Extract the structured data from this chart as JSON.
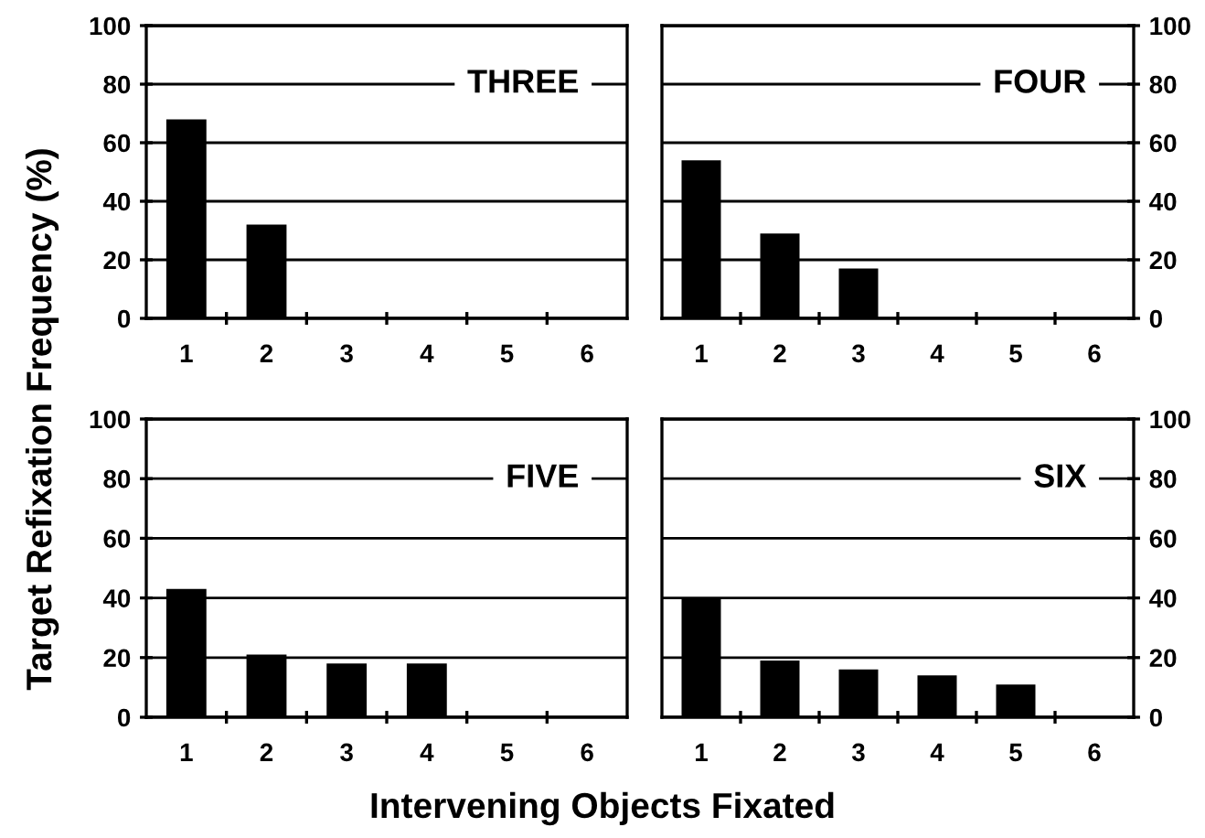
{
  "chart_data": [
    {
      "type": "bar",
      "title": "THREE",
      "ylabel": "Target Refixation Frequency (%)",
      "categories": [
        "1",
        "2",
        "3",
        "4",
        "5",
        "6"
      ],
      "values": [
        68,
        32,
        null,
        null,
        null,
        null
      ],
      "color": "#000000",
      "ylim": [
        0,
        100
      ],
      "yticks": [
        0,
        20,
        40,
        60,
        80,
        100
      ],
      "grid": "y"
    },
    {
      "type": "bar",
      "title": "FOUR",
      "categories": [
        "1",
        "2",
        "3",
        "4",
        "5",
        "6"
      ],
      "values": [
        54,
        29,
        17,
        null,
        null,
        null
      ],
      "color": "#000000",
      "ylim": [
        0,
        100
      ],
      "yticks": [
        0,
        20,
        40,
        60,
        80,
        100
      ],
      "grid": "y"
    },
    {
      "type": "bar",
      "title": "FIVE",
      "xlabel": "Intervening Objects Fixated",
      "categories": [
        "1",
        "2",
        "3",
        "4",
        "5",
        "6"
      ],
      "values": [
        43,
        21,
        18,
        18,
        null,
        null
      ],
      "color": "#000000",
      "ylim": [
        0,
        100
      ],
      "yticks": [
        0,
        20,
        40,
        60,
        80,
        100
      ],
      "grid": "y"
    },
    {
      "type": "bar",
      "title": "SIX",
      "categories": [
        "1",
        "2",
        "3",
        "4",
        "5",
        "6"
      ],
      "values": [
        40,
        19,
        16,
        14,
        11,
        null
      ],
      "color": "#000000",
      "ylim": [
        0,
        100
      ],
      "yticks": [
        0,
        20,
        40,
        60,
        80,
        100
      ],
      "grid": "y"
    }
  ]
}
